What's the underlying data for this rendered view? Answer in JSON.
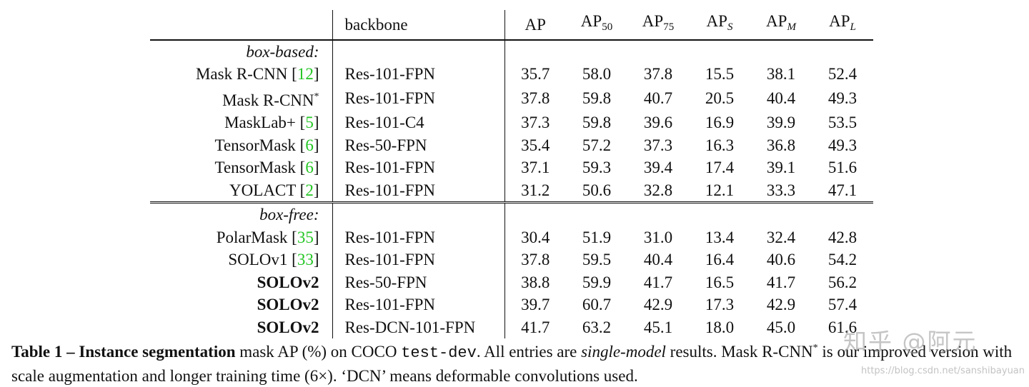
{
  "table": {
    "header": {
      "method": "",
      "backbone": "backbone",
      "cols": [
        {
          "base": "AP",
          "sub": "",
          "upright": false
        },
        {
          "base": "AP",
          "sub": "50",
          "upright": true
        },
        {
          "base": "AP",
          "sub": "75",
          "upright": true
        },
        {
          "base": "AP",
          "sub": "S",
          "upright": false
        },
        {
          "base": "AP",
          "sub": "M",
          "upright": false
        },
        {
          "base": "AP",
          "sub": "L",
          "upright": false
        }
      ]
    },
    "groups": [
      {
        "label": "box-based:",
        "rows": [
          {
            "name": "Mask R-CNN",
            "ref": "12",
            "sup": "",
            "bold_name": false,
            "backbone": "Res-101-FPN",
            "values": [
              "35.7",
              "58.0",
              "37.8",
              "15.5",
              "38.1",
              "52.4"
            ],
            "bold": [
              false,
              false,
              false,
              false,
              false,
              false
            ]
          },
          {
            "name": "Mask R-CNN",
            "ref": "",
            "sup": "*",
            "bold_name": false,
            "backbone": "Res-101-FPN",
            "values": [
              "37.8",
              "59.8",
              "40.7",
              "20.5",
              "40.4",
              "49.3"
            ],
            "bold": [
              false,
              false,
              false,
              true,
              false,
              false
            ]
          },
          {
            "name": "MaskLab+",
            "ref": "5",
            "sup": "",
            "bold_name": false,
            "backbone": "Res-101-C4",
            "values": [
              "37.3",
              "59.8",
              "39.6",
              "16.9",
              "39.9",
              "53.5"
            ],
            "bold": [
              false,
              false,
              false,
              false,
              false,
              false
            ]
          },
          {
            "name": "TensorMask",
            "ref": "6",
            "sup": "",
            "bold_name": false,
            "backbone": "Res-50-FPN",
            "values": [
              "35.4",
              "57.2",
              "37.3",
              "16.3",
              "36.8",
              "49.3"
            ],
            "bold": [
              false,
              false,
              false,
              false,
              false,
              false
            ]
          },
          {
            "name": "TensorMask",
            "ref": "6",
            "sup": "",
            "bold_name": false,
            "backbone": "Res-101-FPN",
            "values": [
              "37.1",
              "59.3",
              "39.4",
              "17.4",
              "39.1",
              "51.6"
            ],
            "bold": [
              false,
              false,
              false,
              false,
              false,
              false
            ]
          },
          {
            "name": "YOLACT",
            "ref": "2",
            "sup": "",
            "bold_name": false,
            "backbone": "Res-101-FPN",
            "values": [
              "31.2",
              "50.6",
              "32.8",
              "12.1",
              "33.3",
              "47.1"
            ],
            "bold": [
              false,
              false,
              false,
              false,
              false,
              false
            ]
          }
        ]
      },
      {
        "label": "box-free:",
        "rows": [
          {
            "name": "PolarMask",
            "ref": "35",
            "sup": "",
            "bold_name": false,
            "backbone": "Res-101-FPN",
            "values": [
              "30.4",
              "51.9",
              "31.0",
              "13.4",
              "32.4",
              "42.8"
            ],
            "bold": [
              false,
              false,
              false,
              false,
              false,
              false
            ]
          },
          {
            "name": "SOLOv1",
            "ref": "33",
            "sup": "",
            "bold_name": false,
            "backbone": "Res-101-FPN",
            "values": [
              "37.8",
              "59.5",
              "40.4",
              "16.4",
              "40.6",
              "54.2"
            ],
            "bold": [
              false,
              false,
              false,
              false,
              false,
              false
            ]
          },
          {
            "name": "SOLOv2",
            "ref": "",
            "sup": "",
            "bold_name": true,
            "backbone": "Res-50-FPN",
            "values": [
              "38.8",
              "59.9",
              "41.7",
              "16.5",
              "41.7",
              "56.2"
            ],
            "bold": [
              false,
              false,
              false,
              false,
              false,
              false
            ]
          },
          {
            "name": "SOLOv2",
            "ref": "",
            "sup": "",
            "bold_name": true,
            "backbone": "Res-101-FPN",
            "values": [
              "39.7",
              "60.7",
              "42.9",
              "17.3",
              "42.9",
              "57.4"
            ],
            "bold": [
              false,
              false,
              false,
              false,
              false,
              false
            ]
          },
          {
            "name": "SOLOv2",
            "ref": "",
            "sup": "",
            "bold_name": true,
            "backbone": "Res-DCN-101-FPN",
            "values": [
              "41.7",
              "63.2",
              "45.1",
              "18.0",
              "45.0",
              "61.6"
            ],
            "bold": [
              true,
              true,
              true,
              false,
              true,
              true
            ]
          }
        ]
      }
    ]
  },
  "caption": {
    "label": "Table 1 – Instance segmentation",
    "part1": " mask AP (%) on COCO ",
    "code": "test-dev",
    "part2": ".  All entries are ",
    "italic": "single-model",
    "part3": " results.  Mask R-CNN",
    "sup": "*",
    "part4": " is our improved version with scale augmentation and longer training time (6×). ‘DCN’ means deformable convolutions used."
  },
  "watermark": {
    "text": "知乎 @阿元",
    "url": "https://blog.csdn.net/sanshibayuan"
  }
}
